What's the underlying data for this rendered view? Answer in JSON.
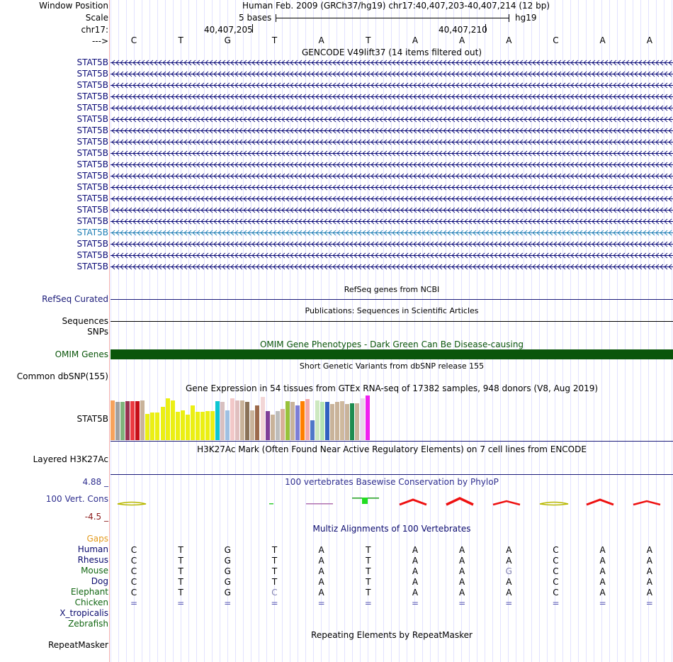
{
  "header": {
    "window_position_label": "Window Position",
    "scale_label": "Scale",
    "chrom_label": "chr17:",
    "strand_label": "--->",
    "position_text": "Human Feb. 2009 (GRCh37/hg19)   chr17:40,407,203-40,407,214 (12 bp)",
    "scale_text": "5 bases",
    "assembly": "hg19",
    "coord1": "40,407,205",
    "coord2": "40,407,210"
  },
  "sequence": [
    "C",
    "T",
    "G",
    "T",
    "A",
    "T",
    "A",
    "A",
    "A",
    "C",
    "A",
    "A"
  ],
  "gencode": {
    "title": "GENCODE V49lift37 (14 items filtered out)",
    "genes": [
      "STAT5B",
      "STAT5B",
      "STAT5B",
      "STAT5B",
      "STAT5B",
      "STAT5B",
      "STAT5B",
      "STAT5B",
      "STAT5B",
      "STAT5B",
      "STAT5B",
      "STAT5B",
      "STAT5B",
      "STAT5B",
      "STAT5B",
      "STAT5B",
      "STAT5B",
      "STAT5B",
      "STAT5B"
    ],
    "highlight_index": 15,
    "colors": {
      "normal": "#0c0c78",
      "highlight": "#1c7db4"
    }
  },
  "refseq": {
    "title": "RefSeq genes from NCBI",
    "label": "RefSeq Curated"
  },
  "publications": {
    "title": "Publications: Sequences in Scientific Articles",
    "label": "Sequences"
  },
  "snps_label": "SNPs",
  "omim": {
    "title": "OMIM Gene Phenotypes - Dark Green Can Be Disease-causing",
    "label": "OMIM Genes",
    "color": "#0a550a"
  },
  "dbsnp": {
    "title": "Short Genetic Variants from dbSNP release 155",
    "label": "Common dbSNP(155)"
  },
  "gtex": {
    "title": "Gene Expression in 54 tissues from GTEx RNA-seq of 17382 samples, 948 donors (V8, Aug 2019)",
    "label": "STAT5B",
    "bars": [
      {
        "h": 0.88,
        "c": "#f7a25b"
      },
      {
        "h": 0.85,
        "c": "#a0a0a0"
      },
      {
        "h": 0.85,
        "c": "#7fb37c"
      },
      {
        "h": 0.86,
        "c": "#9a3050"
      },
      {
        "h": 0.86,
        "c": "#ec3a41"
      },
      {
        "h": 0.86,
        "c": "#c60f18"
      },
      {
        "h": 0.88,
        "c": "#c9b39a"
      },
      {
        "h": 0.58,
        "c": "#ebef14"
      },
      {
        "h": 0.61,
        "c": "#ebef14"
      },
      {
        "h": 0.61,
        "c": "#ebef14"
      },
      {
        "h": 0.74,
        "c": "#ebef14"
      },
      {
        "h": 0.92,
        "c": "#ebef14"
      },
      {
        "h": 0.88,
        "c": "#ebef14"
      },
      {
        "h": 0.62,
        "c": "#ebef14"
      },
      {
        "h": 0.65,
        "c": "#ebef14"
      },
      {
        "h": 0.57,
        "c": "#ebef14"
      },
      {
        "h": 0.76,
        "c": "#ebef14"
      },
      {
        "h": 0.63,
        "c": "#ebef14"
      },
      {
        "h": 0.63,
        "c": "#ebef14"
      },
      {
        "h": 0.64,
        "c": "#ebef14"
      },
      {
        "h": 0.64,
        "c": "#ebef14"
      },
      {
        "h": 0.86,
        "c": "#0cc6d2"
      },
      {
        "h": 0.84,
        "c": "#d8c0c0"
      },
      {
        "h": 0.66,
        "c": "#9ec0e2"
      },
      {
        "h": 0.92,
        "c": "#f2c8c8"
      },
      {
        "h": 0.88,
        "c": "#e0bfbf"
      },
      {
        "h": 0.88,
        "c": "#c9b39a"
      },
      {
        "h": 0.84,
        "c": "#8a7258"
      },
      {
        "h": 0.66,
        "c": "#c9b39a"
      },
      {
        "h": 0.76,
        "c": "#9c6a4c"
      },
      {
        "h": 0.95,
        "c": "#f2d6d6"
      },
      {
        "h": 0.64,
        "c": "#7f3f98"
      },
      {
        "h": 0.57,
        "c": "#c9b39a"
      },
      {
        "h": 0.64,
        "c": "#bdbdbd"
      },
      {
        "h": 0.69,
        "c": "#d8b09a"
      },
      {
        "h": 0.86,
        "c": "#99c23c"
      },
      {
        "h": 0.84,
        "c": "#c9b39a"
      },
      {
        "h": 0.76,
        "c": "#7d7dd6"
      },
      {
        "h": 0.86,
        "c": "#ff7f00"
      },
      {
        "h": 0.91,
        "c": "#f2a9a9"
      },
      {
        "h": 0.44,
        "c": "#5078c8"
      },
      {
        "h": 0.88,
        "c": "#cde8c0"
      },
      {
        "h": 0.84,
        "c": "#b3e3b3"
      },
      {
        "h": 0.84,
        "c": "#3060c0"
      },
      {
        "h": 0.79,
        "c": "#c9b39a"
      },
      {
        "h": 0.84,
        "c": "#c9b39a"
      },
      {
        "h": 0.86,
        "c": "#cfb99e"
      },
      {
        "h": 0.79,
        "c": "#c9b39a"
      },
      {
        "h": 0.81,
        "c": "#1e8c50"
      },
      {
        "h": 0.82,
        "c": "#c9b39a"
      },
      {
        "h": 0.92,
        "c": "#e8d8e8"
      },
      {
        "h": 0.98,
        "c": "#f020f0"
      }
    ]
  },
  "h3k27ac": {
    "title": "H3K27Ac Mark (Often Found Near Active Regulatory Elements) on 7 cell lines from ENCODE",
    "label": "Layered H3K27Ac"
  },
  "phylop": {
    "title": "100 vertebrates Basewise Conservation by PhyloP",
    "label": "100 Vert. Cons",
    "max_label": "4.88 _",
    "min_label": "-4.5 _",
    "colors": {
      "title": "#2f2f8f",
      "label": "#2f2f8f",
      "min": "#8b1a1a"
    }
  },
  "multiz": {
    "title": "Multiz Alignments of 100 Vertebrates",
    "gaps_label": "Gaps",
    "species": [
      {
        "name": "Human",
        "color": "#0a0a6e",
        "bases": [
          "C",
          "T",
          "G",
          "T",
          "A",
          "T",
          "A",
          "A",
          "A",
          "C",
          "A",
          "A"
        ],
        "odd": []
      },
      {
        "name": "Rhesus",
        "color": "#0a0a6e",
        "bases": [
          "C",
          "T",
          "G",
          "T",
          "A",
          "T",
          "A",
          "A",
          "A",
          "C",
          "A",
          "A"
        ],
        "odd": []
      },
      {
        "name": "Mouse",
        "color": "#116611",
        "bases": [
          "C",
          "T",
          "G",
          "T",
          "A",
          "T",
          "A",
          "A",
          "G",
          "C",
          "A",
          "A"
        ],
        "odd": [
          8
        ]
      },
      {
        "name": "Dog",
        "color": "#0a0a6e",
        "bases": [
          "C",
          "T",
          "G",
          "T",
          "A",
          "T",
          "A",
          "A",
          "A",
          "C",
          "A",
          "A"
        ],
        "odd": []
      },
      {
        "name": "Elephant",
        "color": "#116611",
        "bases": [
          "C",
          "T",
          "G",
          "C",
          "A",
          "T",
          "A",
          "A",
          "A",
          "C",
          "A",
          "A"
        ],
        "odd": [
          3
        ]
      },
      {
        "name": "Chicken",
        "color": "#116611",
        "bases": [
          "=",
          "=",
          "=",
          "=",
          "=",
          "=",
          "=",
          "=",
          "=",
          "=",
          "=",
          "="
        ],
        "odd": []
      },
      {
        "name": "X_tropicalis",
        "color": "#0a0a6e",
        "bases": [],
        "odd": []
      },
      {
        "name": "Zebrafish",
        "color": "#116611",
        "bases": [],
        "odd": []
      }
    ]
  },
  "repeatmasker": {
    "title": "Repeating Elements by RepeatMasker",
    "label": "RepeatMasker"
  }
}
